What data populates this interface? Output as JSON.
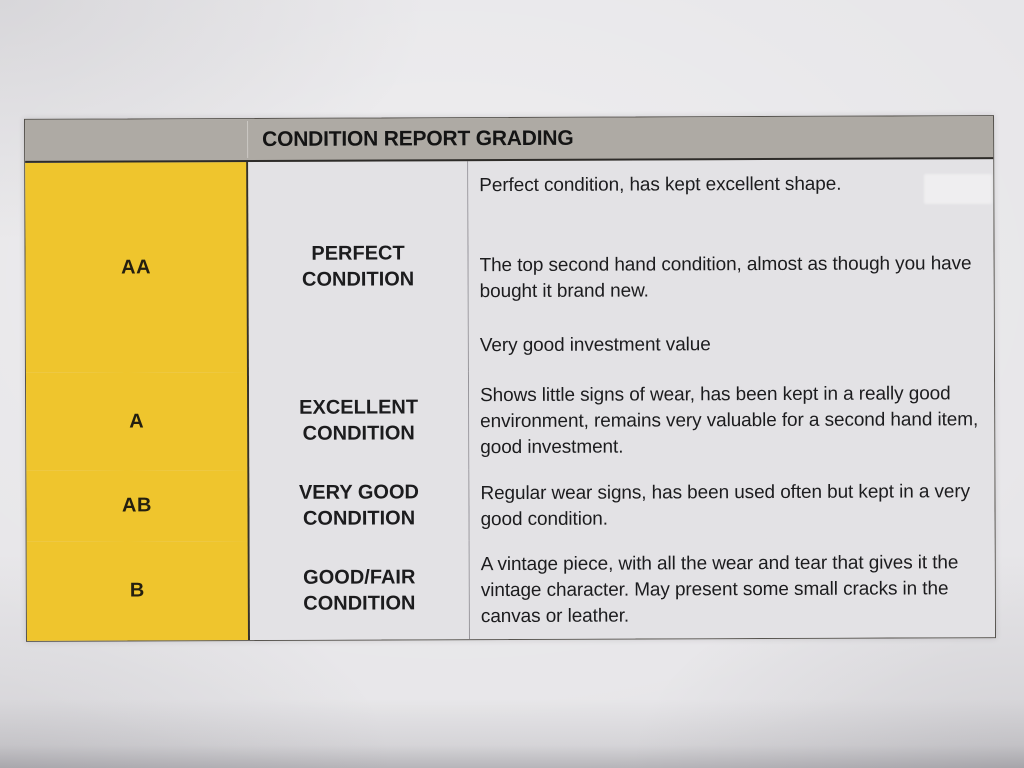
{
  "document": {
    "header": {
      "title": "CONDITION REPORT GRADING"
    },
    "grades": [
      {
        "code": "AA",
        "label": "PERFECT CONDITION",
        "description": [
          "Perfect condition, has kept excellent shape.",
          "The top second hand condition, almost as though you have bought it brand new.",
          "Very good investment value"
        ]
      },
      {
        "code": "A",
        "label": "EXCELLENT CONDITION",
        "description": [
          "Shows little signs of wear, has been kept in a really good environment, remains very valuable for a second hand item, good investment."
        ]
      },
      {
        "code": "AB",
        "label": "VERY GOOD CONDITION",
        "description": [
          "Regular wear signs, has been used often but kept in a very good condition."
        ]
      },
      {
        "code": "B",
        "label": "GOOD/FAIR CONDITION",
        "description": [
          "A vintage piece, with all the wear and tear that gives it the vintage character. May present some small cracks in the canvas or leather."
        ]
      }
    ],
    "colors": {
      "grade_cell": "#EFC52D",
      "header_bar": "#AEAAA4",
      "cell_bg": "#E3E2E5",
      "paper": "#E6E5E8",
      "text": "#1C1C1E"
    }
  }
}
